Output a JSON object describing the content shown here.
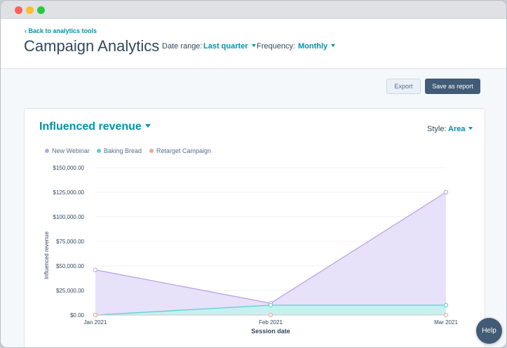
{
  "header": {
    "back_link": "Back to analytics tools",
    "title": "Campaign Analytics",
    "date_range_label": "Date range:",
    "date_range_value": "Last quarter",
    "frequency_label": "Frequency:",
    "frequency_value": "Monthly"
  },
  "toolbar": {
    "export_label": "Export",
    "save_label": "Save as report"
  },
  "card": {
    "title": "Influenced revenue",
    "style_label": "Style:",
    "style_value": "Area"
  },
  "help_label": "Help",
  "chart_data": {
    "type": "area",
    "title": "Influenced revenue",
    "xlabel": "Session date",
    "ylabel": "Influenced revenue",
    "categories": [
      "Jan 2021",
      "Feb 2021",
      "Mar 2021"
    ],
    "y_ticks": [
      "$0.00",
      "$25,000.00",
      "$50,000.00",
      "$75,000.00",
      "$100,000.00",
      "$125,000.00",
      "$150,000.00"
    ],
    "ylim": [
      0,
      150000
    ],
    "legend_position": "top-left",
    "series": [
      {
        "name": "New Webinar",
        "values": [
          46000,
          12000,
          125000
        ],
        "color": "#b9a5e3",
        "fill": "#e6dffa"
      },
      {
        "name": "Baking Bread",
        "values": [
          0,
          10000,
          10000
        ],
        "color": "#5ccfd6",
        "fill": "#c6f0ee"
      },
      {
        "name": "Retarget Campaign",
        "values": [
          0,
          0,
          0
        ],
        "color": "#f2a68e",
        "fill": "#fde2d8"
      }
    ]
  }
}
